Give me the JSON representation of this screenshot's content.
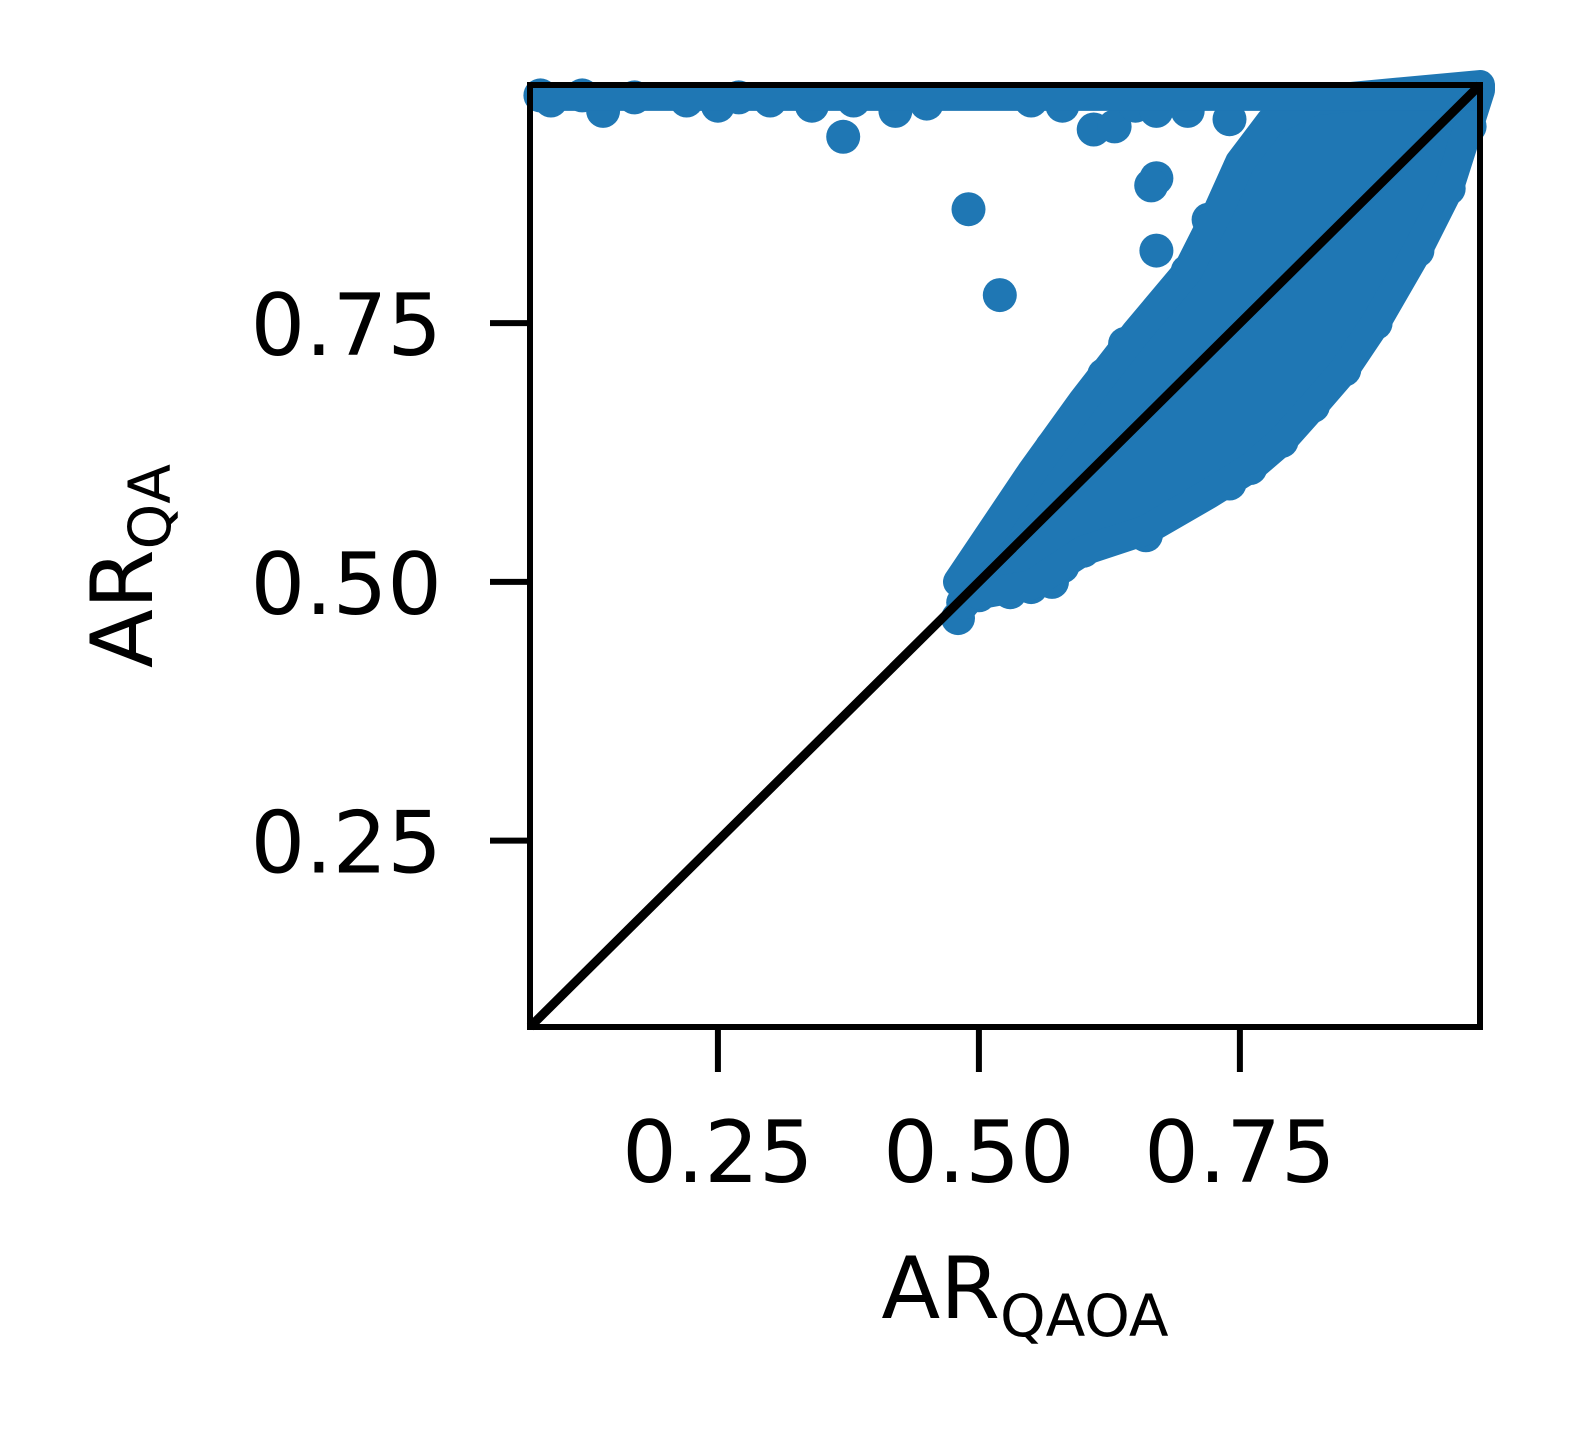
{
  "chart_data": {
    "type": "scatter",
    "title": "",
    "xlabel": "AR",
    "xlabel_sub": "QAOA",
    "ylabel": "AR",
    "ylabel_sub": "QA",
    "xlim": [
      0.07,
      0.98
    ],
    "ylim": [
      0.07,
      0.98
    ],
    "xticks": [
      0.25,
      0.5,
      0.75
    ],
    "xtick_labels": [
      "0.25",
      "0.50",
      "0.75"
    ],
    "yticks": [
      0.25,
      0.5,
      0.75
    ],
    "ytick_labels": [
      "0.25",
      "0.50",
      "0.75"
    ],
    "grid": false,
    "legend": "none",
    "reference_line": {
      "from": [
        0.07,
        0.07
      ],
      "to": [
        0.98,
        0.98
      ],
      "color": "#000000"
    },
    "series": [
      {
        "color": "#1f77b4",
        "points": [
          [
            0.08,
            0.97
          ],
          [
            0.09,
            0.965
          ],
          [
            0.12,
            0.97
          ],
          [
            0.17,
            0.968
          ],
          [
            0.14,
            0.955
          ],
          [
            0.22,
            0.965
          ],
          [
            0.25,
            0.96
          ],
          [
            0.27,
            0.968
          ],
          [
            0.3,
            0.965
          ],
          [
            0.34,
            0.96
          ],
          [
            0.37,
            0.93
          ],
          [
            0.38,
            0.965
          ],
          [
            0.42,
            0.955
          ],
          [
            0.45,
            0.962
          ],
          [
            0.49,
            0.86
          ],
          [
            0.52,
            0.777
          ],
          [
            0.55,
            0.965
          ],
          [
            0.58,
            0.96
          ],
          [
            0.61,
            0.937
          ],
          [
            0.63,
            0.94
          ],
          [
            0.65,
            0.96
          ],
          [
            0.67,
            0.955
          ],
          [
            0.7,
            0.955
          ],
          [
            0.74,
            0.947
          ],
          [
            0.67,
            0.89
          ],
          [
            0.665,
            0.883
          ],
          [
            0.67,
            0.82
          ],
          [
            0.9,
            0.795
          ],
          [
            0.48,
            0.465
          ],
          [
            0.485,
            0.48
          ],
          [
            0.49,
            0.505
          ],
          [
            0.5,
            0.487
          ],
          [
            0.52,
            0.52
          ],
          [
            0.535,
            0.545
          ],
          [
            0.53,
            0.49
          ],
          [
            0.55,
            0.495
          ],
          [
            0.57,
            0.5
          ],
          [
            0.58,
            0.515
          ],
          [
            0.6,
            0.53
          ],
          [
            0.62,
            0.56
          ],
          [
            0.66,
            0.545
          ],
          [
            0.7,
            0.58
          ],
          [
            0.74,
            0.595
          ],
          [
            0.76,
            0.61
          ],
          [
            0.79,
            0.636
          ],
          [
            0.82,
            0.67
          ],
          [
            0.85,
            0.705
          ],
          [
            0.88,
            0.75
          ],
          [
            0.92,
            0.82
          ],
          [
            0.95,
            0.88
          ],
          [
            0.97,
            0.94
          ],
          [
            0.55,
            0.6
          ],
          [
            0.57,
            0.63
          ],
          [
            0.6,
            0.665
          ],
          [
            0.62,
            0.7
          ],
          [
            0.64,
            0.73
          ],
          [
            0.67,
            0.755
          ],
          [
            0.7,
            0.8
          ],
          [
            0.72,
            0.85
          ],
          [
            0.75,
            0.9
          ],
          [
            0.77,
            0.925
          ],
          [
            0.8,
            0.95
          ],
          [
            0.85,
            0.96
          ],
          [
            0.9,
            0.965
          ]
        ]
      }
    ]
  }
}
